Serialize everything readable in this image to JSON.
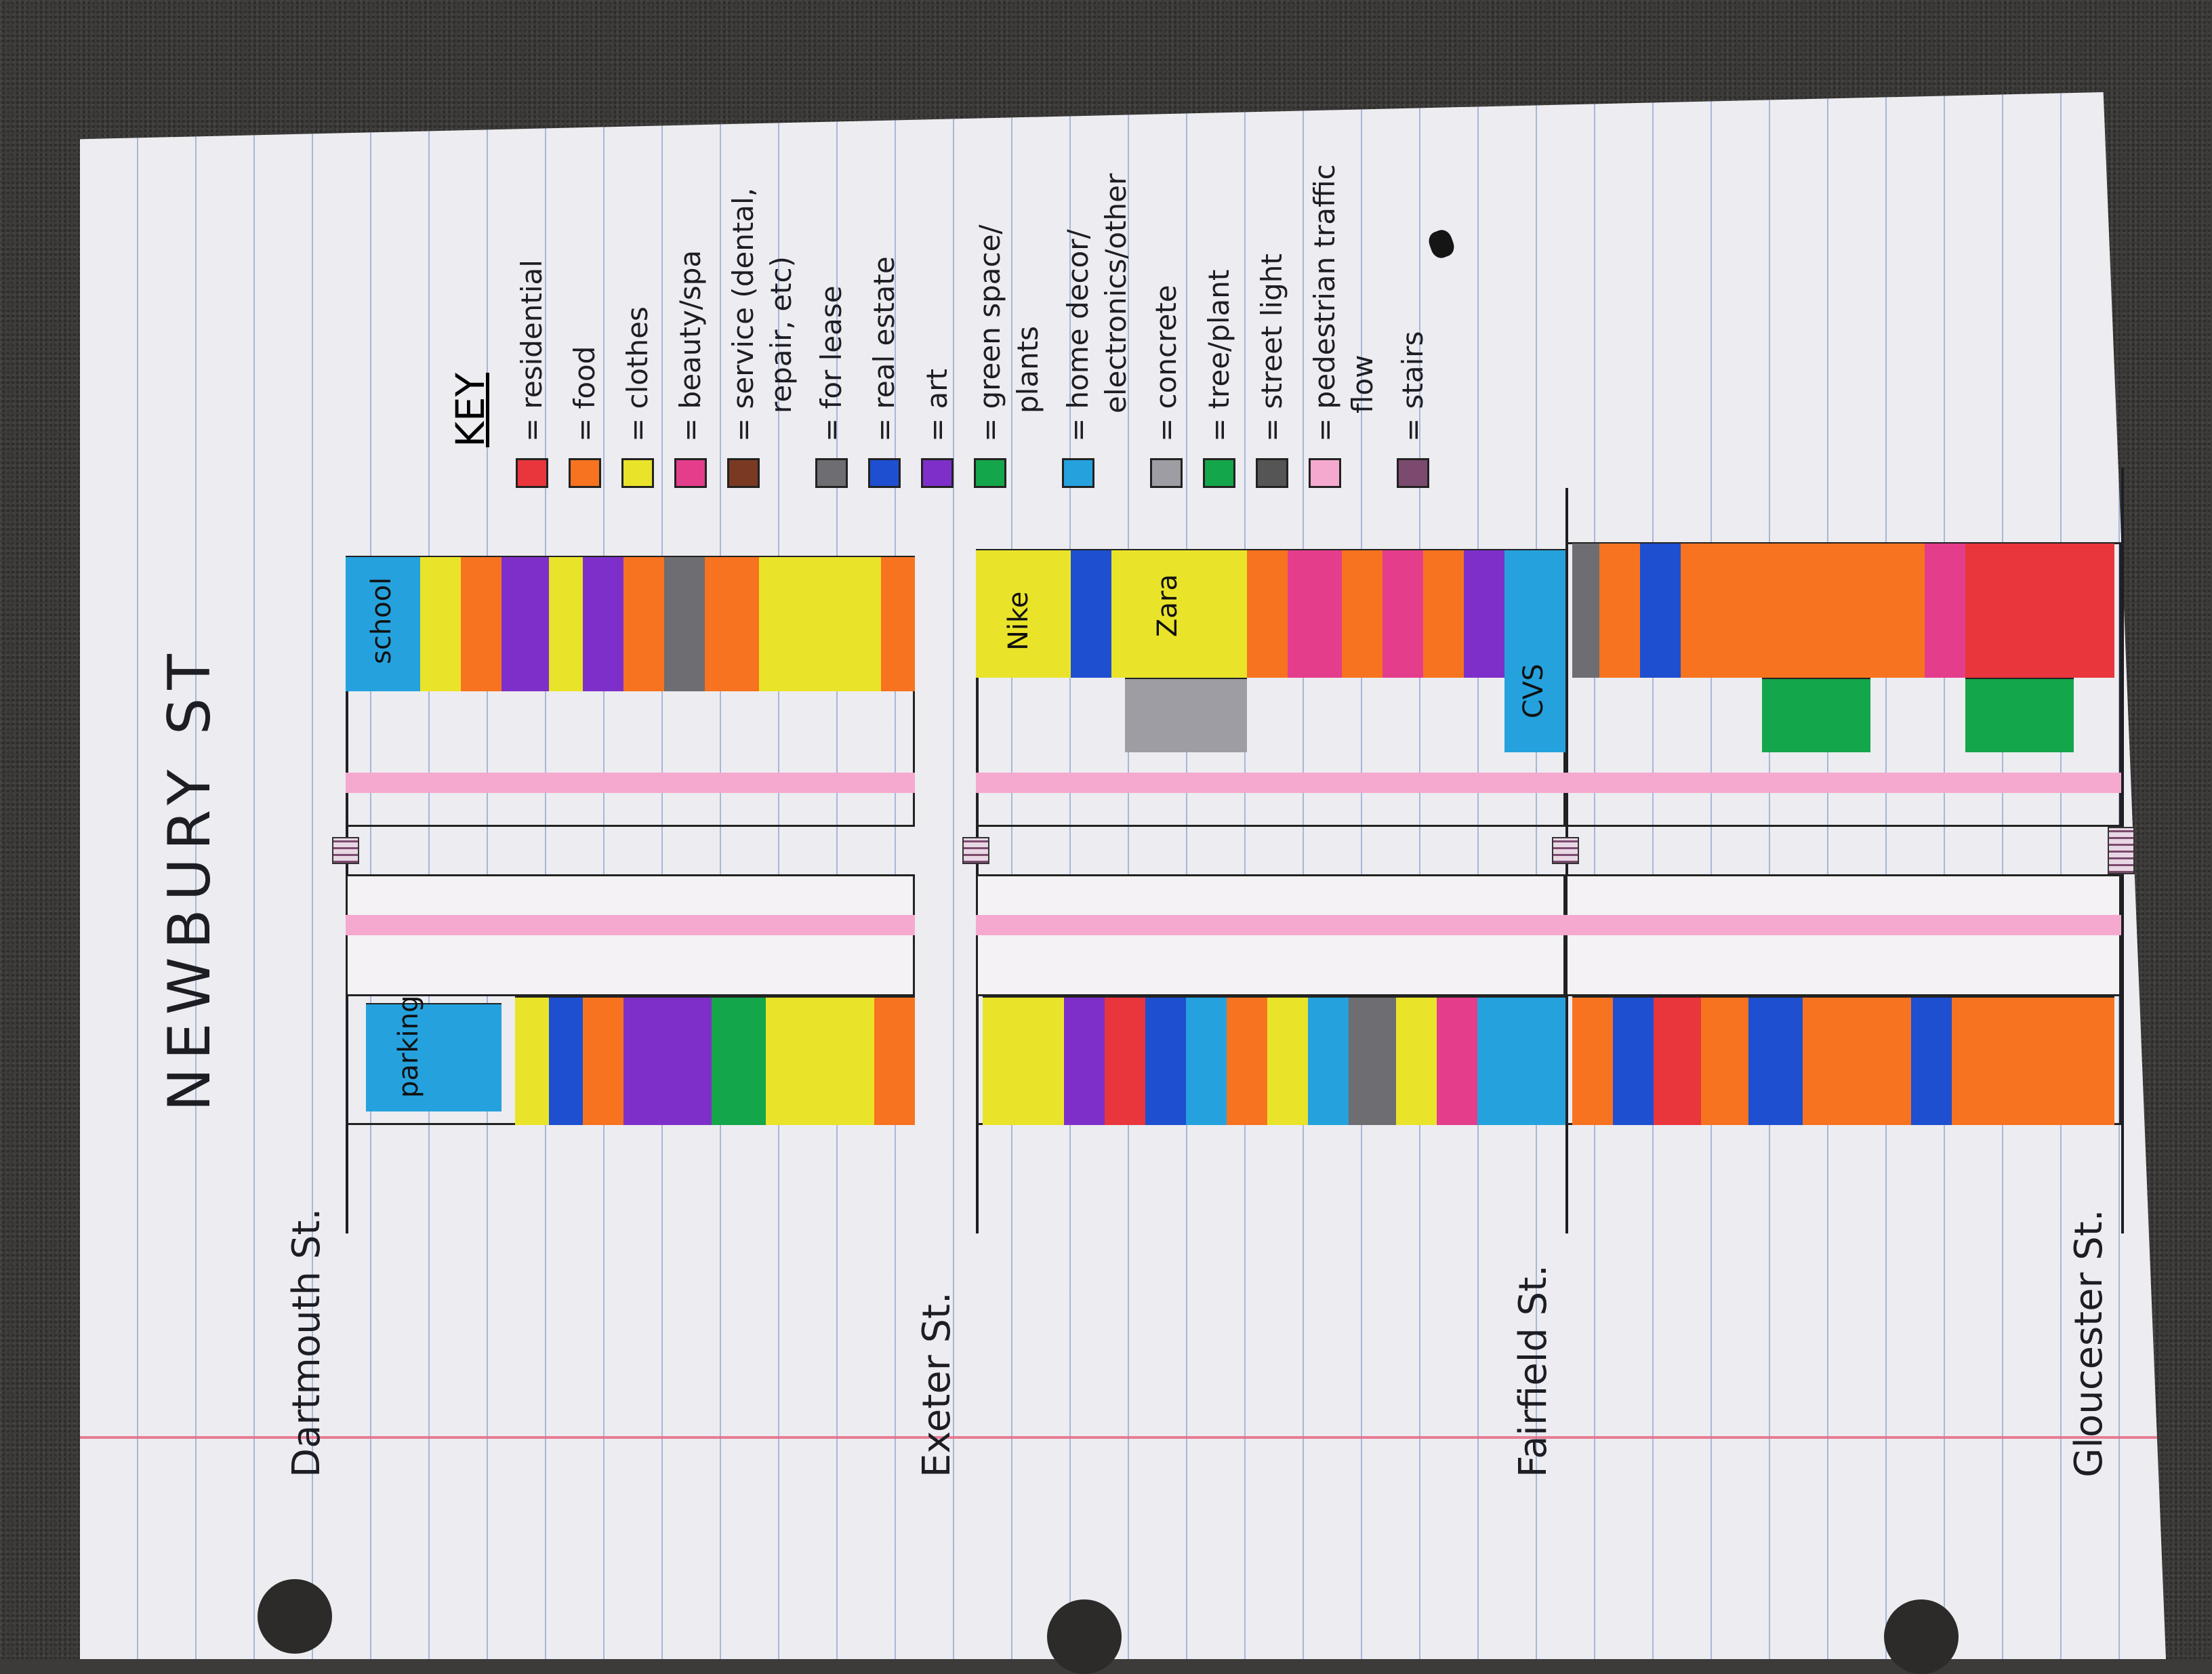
{
  "title": "NEWBURY ST",
  "streets": [
    "Dartmouth St.",
    "Exeter St.",
    "Fairfield St.",
    "Gloucester St."
  ],
  "key": {
    "title": "KEY",
    "items": [
      {
        "label": "= residential",
        "color": "#e8363c"
      },
      {
        "label": "= food",
        "color": "#f7731f"
      },
      {
        "label": "= clothes",
        "color": "#e9e42a"
      },
      {
        "label": "= beauty/spa",
        "color": "#e43d8c"
      },
      {
        "label": "= service (dental,",
        "label2": "repair, etc)",
        "color": "#7a3a22"
      },
      {
        "label": "= for lease",
        "color": "#6d6d72"
      },
      {
        "label": "= real estate",
        "color": "#1d4fd0"
      },
      {
        "label": "= art",
        "color": "#7e2fc9"
      },
      {
        "label": "= green space/",
        "label2": "plants",
        "color": "#14a64a"
      },
      {
        "label": "= home decor/",
        "label2": "electronics/other",
        "color": "#25a2de"
      },
      {
        "label": "= concrete",
        "color": "#9d9da3"
      },
      {
        "label": "= tree/plant",
        "color": "#14a64a"
      },
      {
        "label": "= street light",
        "color": "#555555"
      },
      {
        "label": "= pedestrian traffic",
        "label2": "flow",
        "color": "#f6a9cf"
      },
      {
        "label": "= stairs",
        "color": "#7c4a6e"
      }
    ]
  },
  "block_labels": {
    "school": "school",
    "parking": "parking lot",
    "nike": "Nike",
    "zara": "Zara",
    "cvs": "CVS"
  },
  "colors": {
    "residential": "#e8363c",
    "food": "#f7731f",
    "clothes": "#e9e42a",
    "beauty": "#e43d8c",
    "service": "#7a3a22",
    "lease": "#6d6d72",
    "realestate": "#1d4fd0",
    "art": "#7e2fc9",
    "green": "#14a64a",
    "home": "#25a2de",
    "concrete": "#9d9da3",
    "ped": "#f6a9cf"
  }
}
